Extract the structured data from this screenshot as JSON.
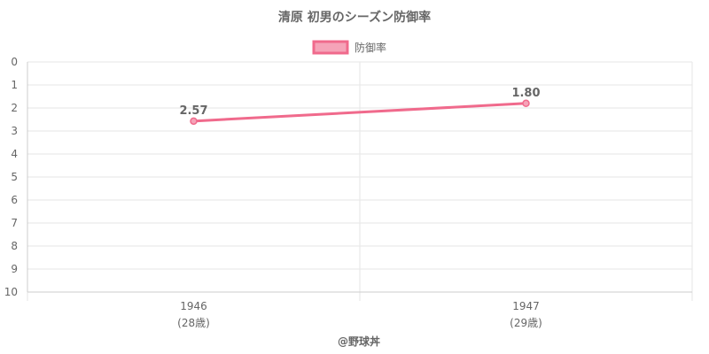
{
  "chart_data": {
    "type": "line",
    "title": "清原 初男のシーズン防御率",
    "legend": {
      "position": "top"
    },
    "categories": [
      {
        "year": "1946",
        "age": "(28歳)"
      },
      {
        "year": "1947",
        "age": "(29歳)"
      }
    ],
    "series": [
      {
        "name": "防御率",
        "values": [
          2.57,
          1.8
        ],
        "labels": [
          "2.57",
          "1.80"
        ]
      }
    ],
    "yaxis": {
      "reversed": true,
      "min": 0,
      "max": 10,
      "step": 1
    },
    "grid": true,
    "colors": {
      "line": "#f06a8c",
      "fill": "#f5a3b8"
    }
  },
  "credit": "@野球丼"
}
